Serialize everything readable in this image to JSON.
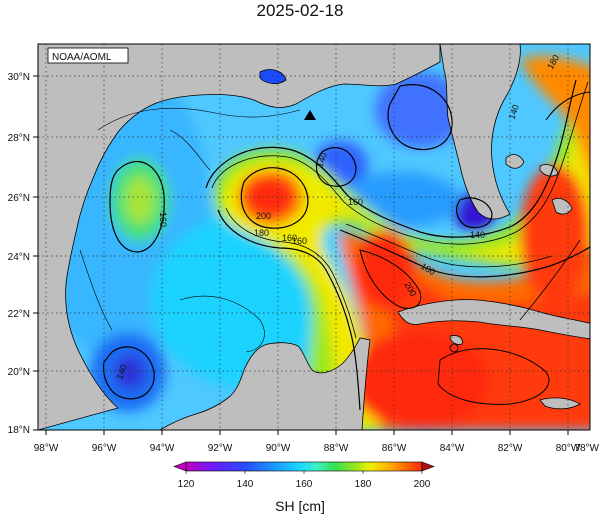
{
  "title": "2025-02-18",
  "credit": "NOAA/AOML",
  "lon_labels": [
    "98°W",
    "96°W",
    "94°W",
    "92°W",
    "90°W",
    "88°W",
    "86°W",
    "84°W",
    "82°W",
    "80°W",
    "78°W"
  ],
  "lat_labels": [
    "30°N",
    "28°N",
    "26°N",
    "24°N",
    "22°N",
    "20°N",
    "18°N"
  ],
  "contour_labels": [
    "160",
    "160",
    "200",
    "180",
    "160",
    "140",
    "160",
    "180",
    "200",
    "140",
    "180",
    "140",
    "140"
  ],
  "colorbar": {
    "ticks": [
      "120",
      "140",
      "160",
      "180",
      "200"
    ],
    "unit_label": "SH [cm]",
    "colors": [
      "#c000c0",
      "#6a1cff",
      "#2a4bff",
      "#1a9cff",
      "#1ad6ff",
      "#3cf0c8",
      "#34e050",
      "#9ae81a",
      "#f0f000",
      "#ffb000",
      "#ff6000",
      "#ff2a10"
    ]
  },
  "colors": {
    "land": "#bebebe",
    "frame": "#000000"
  }
}
